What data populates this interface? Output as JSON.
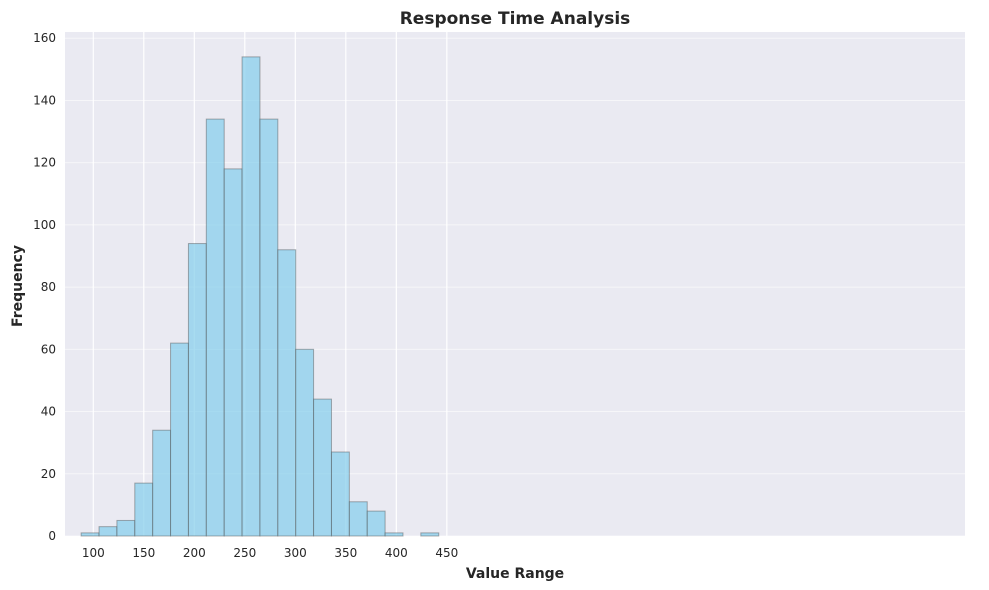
{
  "chart_data": {
    "type": "bar",
    "title": "Response Time Analysis",
    "xlabel": "Value Range",
    "ylabel": "Frequency",
    "xlim": [
      72,
      963
    ],
    "ylim": [
      0,
      162
    ],
    "xticks": [
      100,
      150,
      200,
      250,
      300,
      350,
      400,
      450
    ],
    "yticks": [
      0,
      20,
      40,
      60,
      80,
      100,
      120,
      140,
      160
    ],
    "grid": true,
    "bin_edges": [
      88.0,
      105.7,
      123.4,
      141.1,
      158.8,
      176.5,
      194.2,
      211.9,
      229.6,
      247.3,
      265.0,
      282.7,
      300.4,
      318.1,
      335.8,
      353.5,
      371.2,
      388.9,
      406.6,
      424.3,
      442.0
    ],
    "values": [
      1,
      3,
      5,
      17,
      34,
      62,
      94,
      134,
      118,
      154,
      134,
      92,
      60,
      44,
      27,
      11,
      8,
      1,
      0,
      1
    ],
    "colors": {
      "bar_fill": "#87ceeb",
      "bar_edge": "#4d4d4d",
      "plot_background": "#eaeaf2",
      "grid": "#ffffff",
      "text": "#262626"
    }
  }
}
